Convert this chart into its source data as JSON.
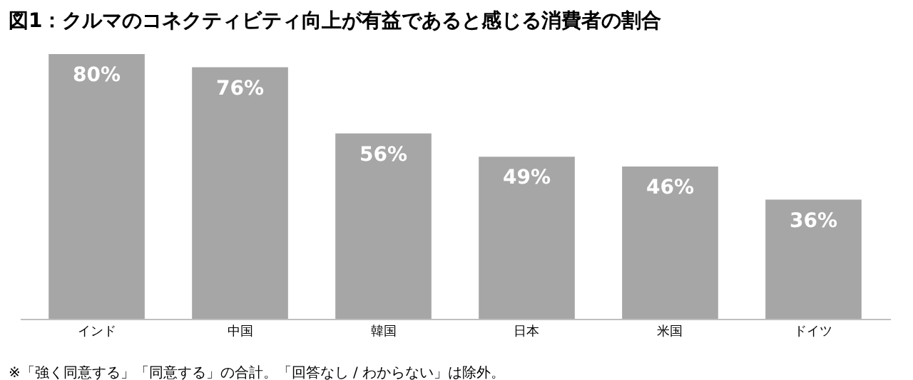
{
  "chart_data": {
    "type": "bar",
    "title": "図1：クルマのコネクティビティ向上が有益であると感じる消費者の割合",
    "categories": [
      "インド",
      "中国",
      "韓国",
      "日本",
      "米国",
      "ドイツ"
    ],
    "values": [
      80,
      76,
      56,
      49,
      46,
      36
    ],
    "value_labels": [
      "80%",
      "76%",
      "56%",
      "49%",
      "46%",
      "36%"
    ],
    "color": "#a6a6a6",
    "annotations": [
      "※「強く同意する」「同意する」の合計。「回答なし / わからない」は除外。"
    ]
  }
}
